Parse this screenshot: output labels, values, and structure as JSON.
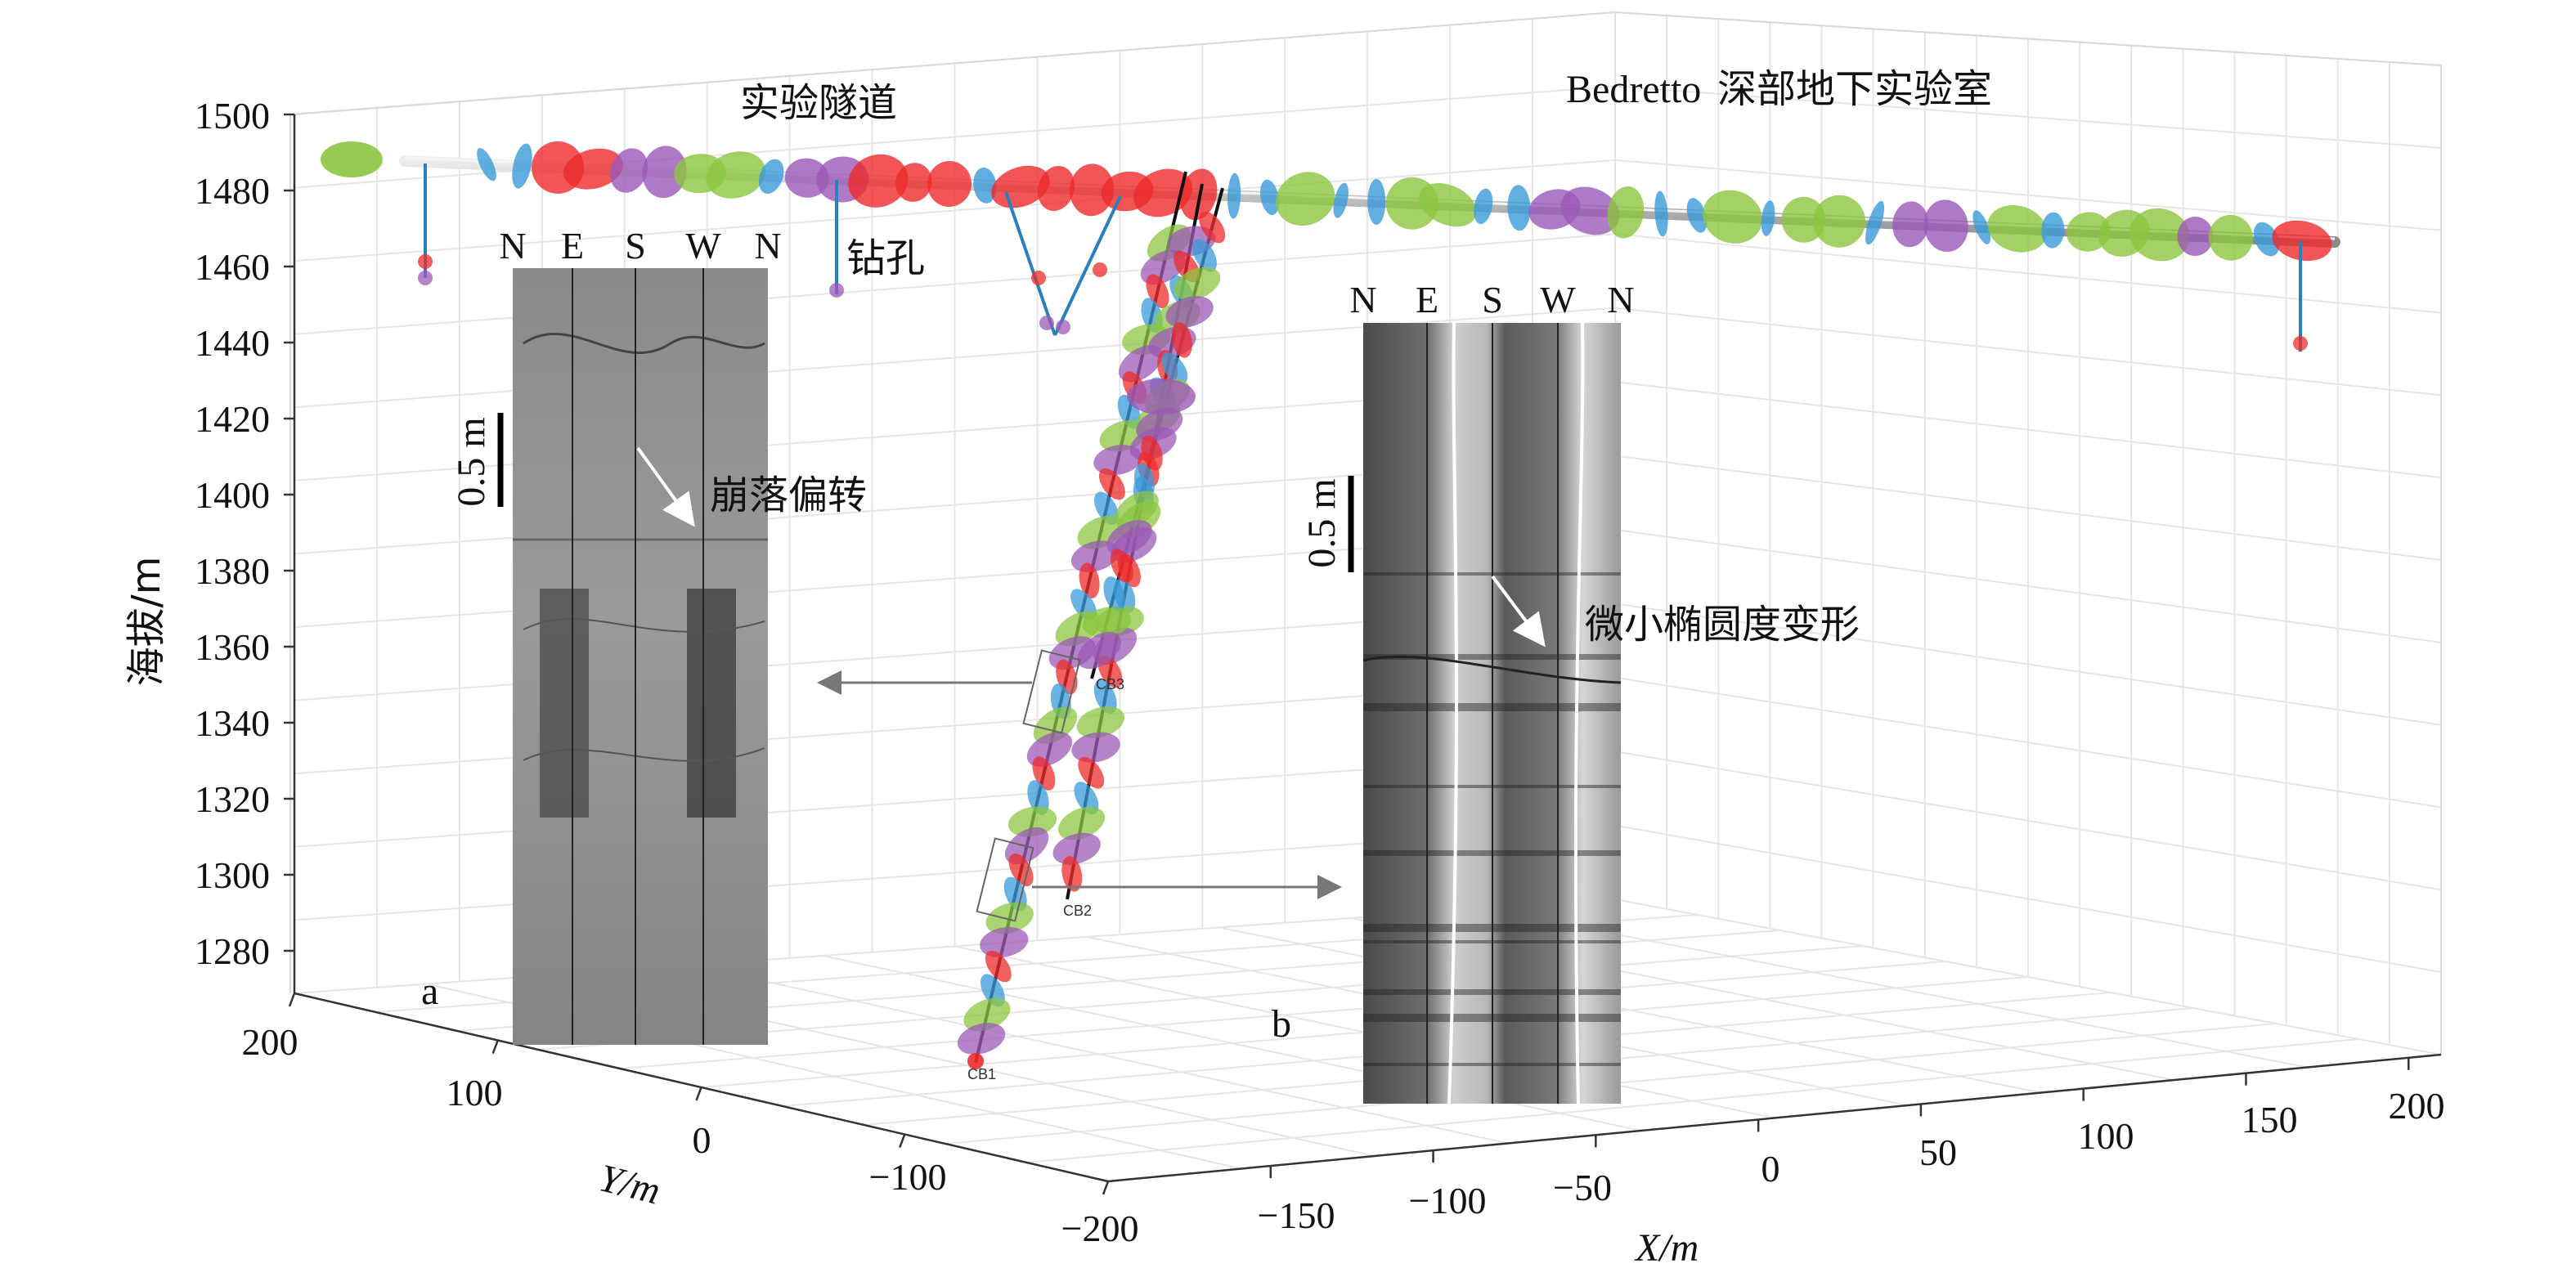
{
  "axes": {
    "z_label": "海拔/m",
    "z_ticks": [
      "1500",
      "1480",
      "1460",
      "1440",
      "1420",
      "1400",
      "1380",
      "1360",
      "1340",
      "1320",
      "1300",
      "1280"
    ],
    "y_label": "Y/m",
    "y_ticks": [
      "200",
      "100",
      "0",
      "−100",
      "−200"
    ],
    "x_label": "X/m",
    "x_ticks": [
      "−150",
      "−100",
      "−50",
      "0",
      "50",
      "100",
      "150",
      "200"
    ]
  },
  "labels": {
    "tunnel": "实验隧道",
    "lab": "Bedretto 深部地下实验室",
    "borehole": "钻孔",
    "breakout": "崩落偏转",
    "ellipse": "微小椭圆度变形",
    "panel_a": "a",
    "panel_b": "b",
    "scale_a": "0.5 m",
    "scale_b": "0.5 m",
    "cb1": "CB1",
    "cb2": "CB2",
    "cb3": "CB3"
  },
  "compass": {
    "a": [
      "N",
      "E",
      "S",
      "W",
      "N"
    ],
    "b": [
      "N",
      "E",
      "S",
      "W",
      "N"
    ]
  },
  "colors": {
    "red": "#ee2b2b",
    "green": "#8cc63f",
    "blue": "#3a9ad9",
    "purple": "#9b59b6",
    "tunnel": "#c8c8c8"
  }
}
